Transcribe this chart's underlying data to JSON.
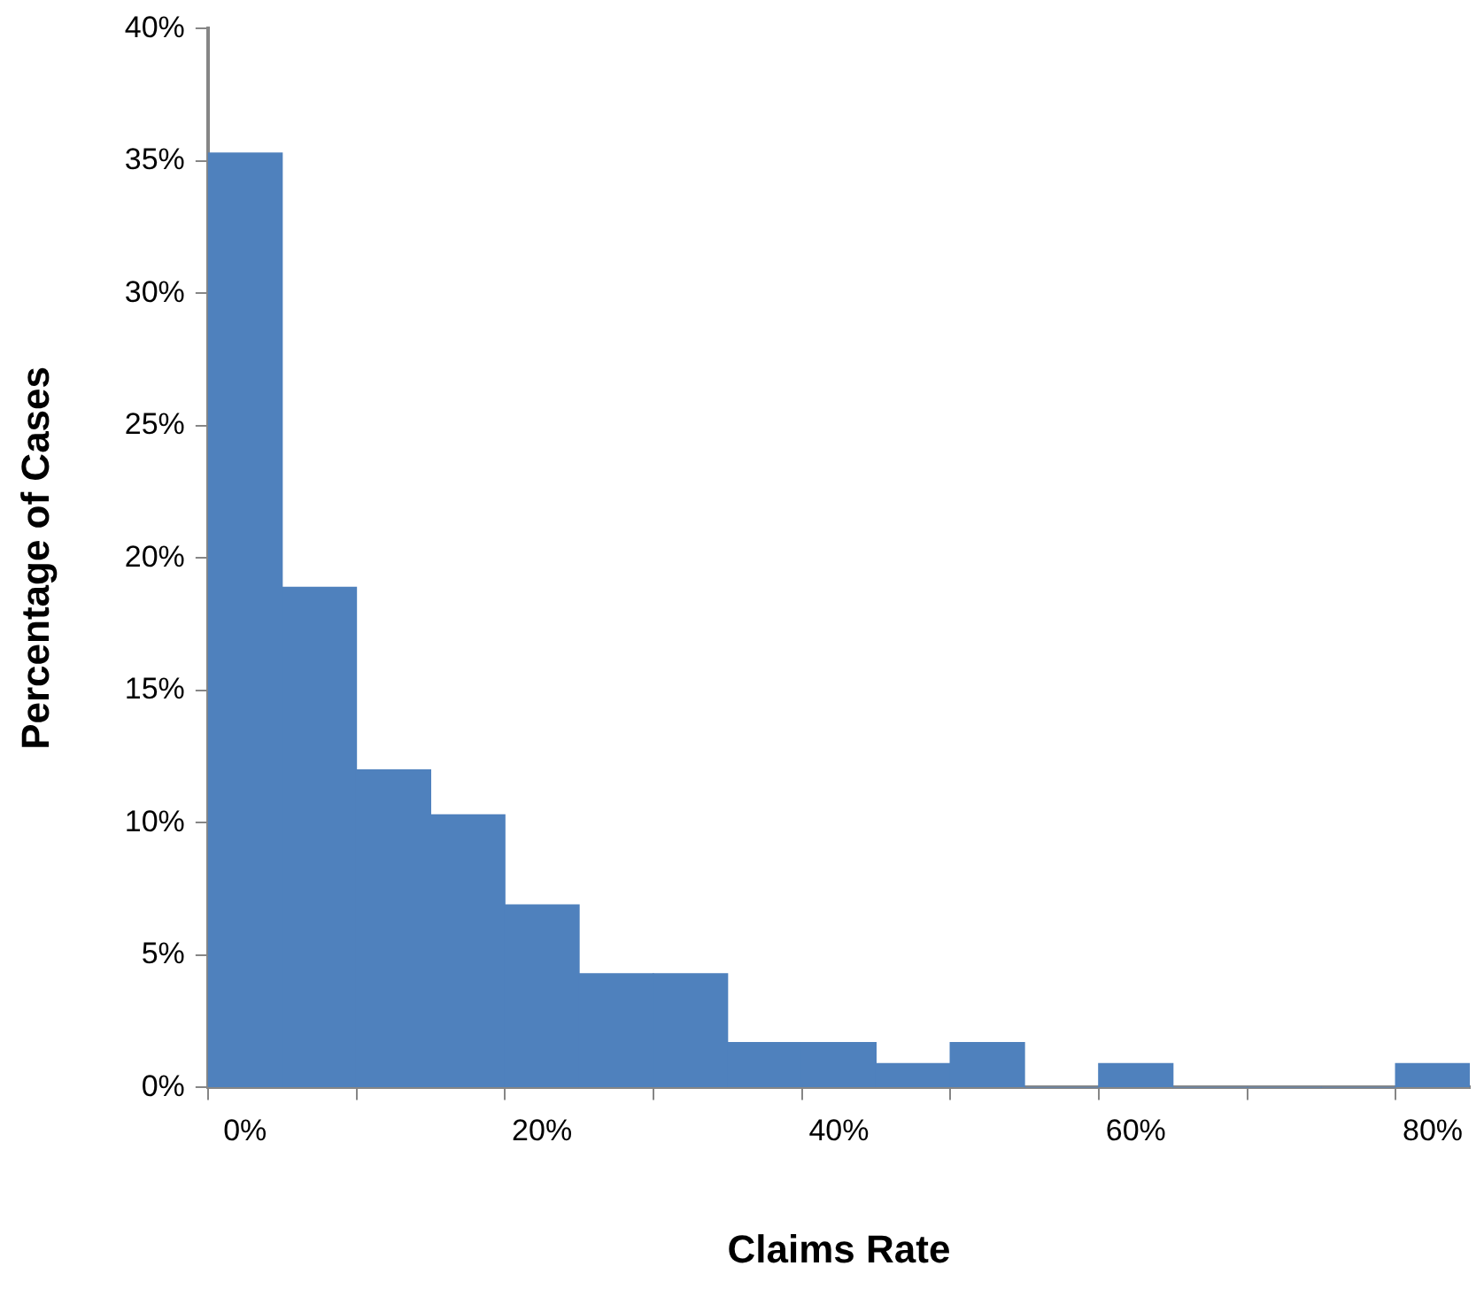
{
  "chart_data": {
    "type": "bar",
    "xlabel": "Claims Rate",
    "ylabel": "Percentage of Cases",
    "categories": [
      "0%",
      null,
      null,
      null,
      "20%",
      null,
      null,
      null,
      "40%",
      null,
      null,
      null,
      "60%",
      null,
      null,
      null,
      "80%"
    ],
    "values": [
      35.3,
      18.9,
      12.0,
      10.3,
      6.9,
      4.3,
      4.3,
      1.7,
      1.7,
      0.9,
      1.7,
      0,
      0.9,
      0,
      0,
      0,
      0.9
    ],
    "color": "#4f81bd",
    "ylim": [
      0,
      40
    ],
    "yticks": [
      {
        "value": 0,
        "label": "0%"
      },
      {
        "value": 5,
        "label": "5%"
      },
      {
        "value": 10,
        "label": "10%"
      },
      {
        "value": 15,
        "label": "15%"
      },
      {
        "value": 20,
        "label": "20%"
      },
      {
        "value": 25,
        "label": "25%"
      },
      {
        "value": 30,
        "label": "30%"
      },
      {
        "value": 35,
        "label": "35%"
      },
      {
        "value": 40,
        "label": "40%"
      }
    ],
    "grid": false,
    "legend": false
  }
}
